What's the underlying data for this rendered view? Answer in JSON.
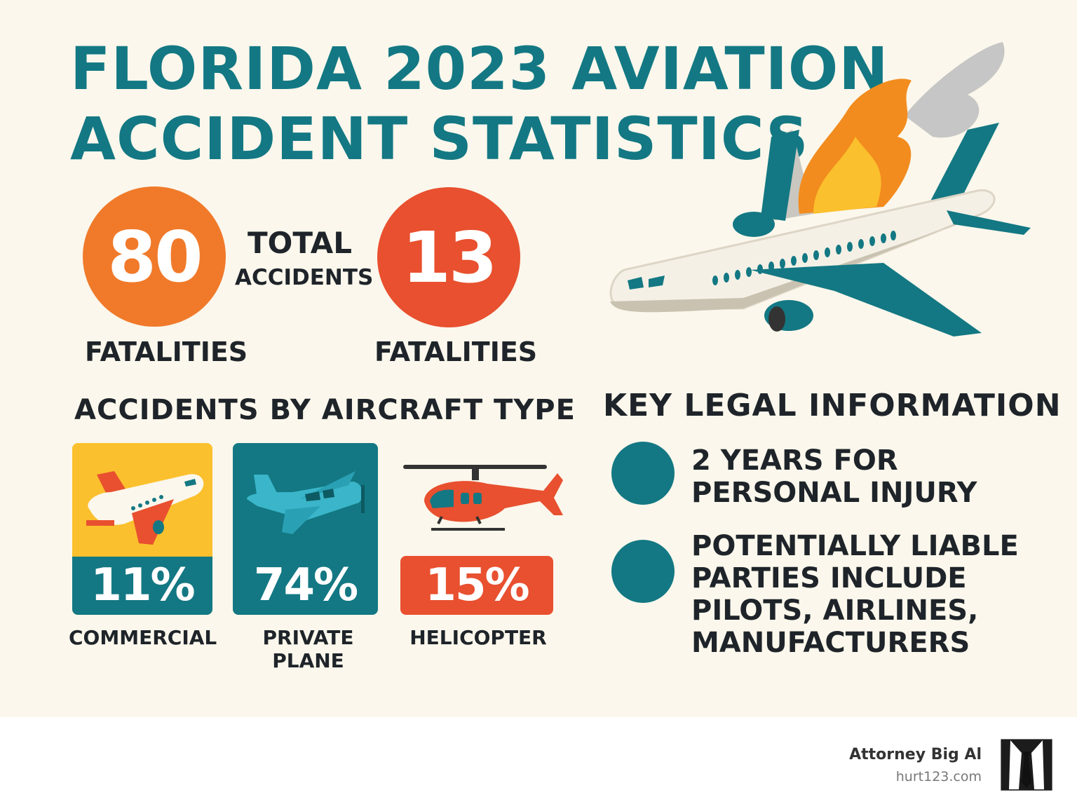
{
  "title": {
    "line1": "FLORIDA 2023 AVIATION",
    "line2": "ACCIDENT STATISTICS"
  },
  "stats": {
    "total_accidents": {
      "value": "80",
      "label_top": "TOTAL",
      "label_bottom": "ACCIDENTS",
      "caption": "FATALITIES"
    },
    "fatalities": {
      "value": "13",
      "caption": "FATALITIES"
    }
  },
  "aircraft_section": {
    "heading": "ACCIDENTS BY AIRCRAFT TYPE",
    "items": [
      {
        "percent": "11%",
        "label": "COMMERCIAL",
        "icon": "airliner-icon"
      },
      {
        "percent": "74%",
        "label": "PRIVATE PLANE",
        "icon": "small-plane-icon"
      },
      {
        "percent": "15%",
        "label": "HELICOPTER",
        "icon": "helicopter-icon"
      }
    ]
  },
  "legal": {
    "heading": "KEY LEGAL INFORMATION",
    "items": [
      {
        "line1": "2 YEARS FOR",
        "line2": "PERSONAL INJURY"
      },
      {
        "line1": "POTENTIALLY LIABLE",
        "line2": "PARTIES INCLUDE",
        "line3": "PILOTS, AIRLINES,",
        "line4": "MANUFACTURERS"
      }
    ]
  },
  "footer": {
    "brand": "Attorney Big Al",
    "url": "hurt123.com",
    "logo_icon": "suit-tie-icon"
  },
  "colors": {
    "teal": "#137883",
    "orange": "#f07a2a",
    "red": "#e8502f",
    "yellow": "#fbc02d",
    "background": "#fbf7ec"
  }
}
